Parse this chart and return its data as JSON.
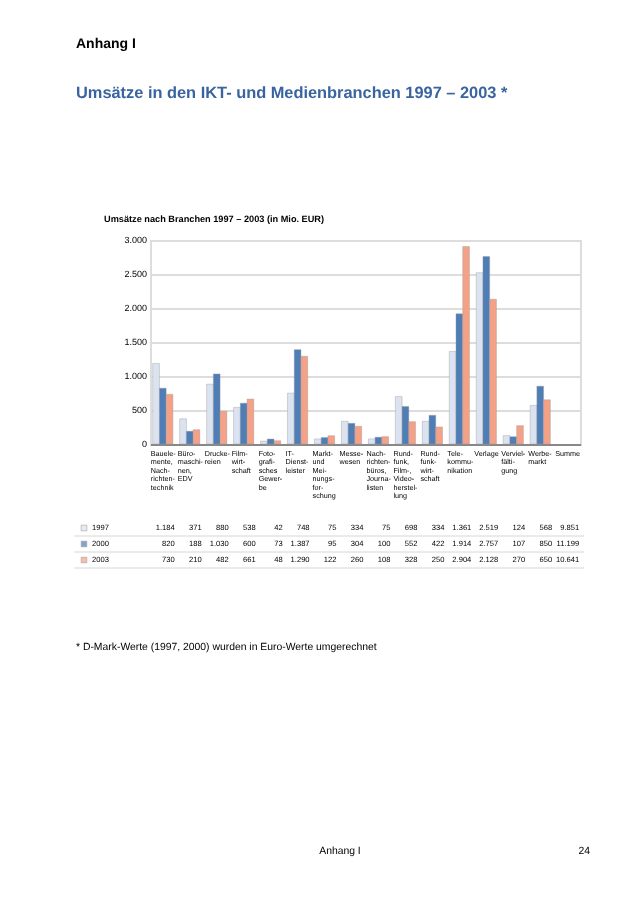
{
  "chart_data": {
    "type": "bar",
    "title": "Umsätze in den IKT- und Medienbranchen 1997 – 2003 *",
    "subtitle": "Umsätze nach Branchen 1997 – 2003 (in Mio. EUR)",
    "categories": [
      "Bauele-mente, Nach-richten-technik",
      "Büro-maschi-nen, EDV",
      "Drucke-reien",
      "Film-wirt-schaft",
      "Foto-grafi-sches Gewer-be",
      "IT-Dienst-leister",
      "Markt- und Mei-nungs-for-schung",
      "Messe-wesen",
      "Nach-richten-büros, Journa-listen",
      "Rund-funk, Film-, Video-herstel-lung",
      "Rund-funk-wirt-schaft",
      "Tele-kommu-nikation",
      "Verlage",
      "Verviel-fälti-gung",
      "Werbe-markt",
      "Summe"
    ],
    "series": [
      {
        "name": "1997",
        "color": "#dce3f0",
        "values": [
          1184,
          371,
          880,
          538,
          42,
          748,
          75,
          334,
          75,
          698,
          334,
          1361,
          2519,
          124,
          568,
          null
        ],
        "value_labels": [
          "1.184",
          "371",
          "880",
          "538",
          "42",
          "748",
          "75",
          "334",
          "75",
          "698",
          "334",
          "1.361",
          "2.519",
          "124",
          "568",
          "9.851"
        ]
      },
      {
        "name": "2000",
        "color": "#4f7db5",
        "values": [
          820,
          188,
          1030,
          600,
          73,
          1387,
          95,
          304,
          100,
          552,
          422,
          1914,
          2757,
          107,
          850,
          null
        ],
        "value_labels": [
          "820",
          "188",
          "1.030",
          "600",
          "73",
          "1.387",
          "95",
          "304",
          "100",
          "552",
          "422",
          "1.914",
          "2.757",
          "107",
          "850",
          "11.199"
        ]
      },
      {
        "name": "2003",
        "color": "#f4a187",
        "values": [
          730,
          210,
          482,
          661,
          48,
          1290,
          122,
          260,
          108,
          328,
          250,
          2904,
          2128,
          270,
          650,
          null
        ],
        "value_labels": [
          "730",
          "210",
          "482",
          "661",
          "48",
          "1.290",
          "122",
          "260",
          "108",
          "328",
          "250",
          "2.904",
          "2.128",
          "270",
          "650",
          "10.641"
        ]
      }
    ],
    "ylim": [
      0,
      3000
    ],
    "yticks": [
      0,
      {
        "value": 500,
        "label": "500"
      },
      {
        "value": 1000,
        "label": "1.000"
      },
      {
        "value": 1500,
        "label": "1.500"
      },
      {
        "value": 2000,
        "label": "2.000"
      },
      {
        "value": 2500,
        "label": "2.500"
      },
      {
        "value": 3000,
        "label": "3.000"
      }
    ],
    "grid": "y",
    "legend": "bottom left",
    "annotations": [
      "Anhang I",
      "* D-Mark-Werte (1997, 2000) wurden in Euro-Werte umgerechnet",
      "Anhang I",
      "24"
    ]
  }
}
